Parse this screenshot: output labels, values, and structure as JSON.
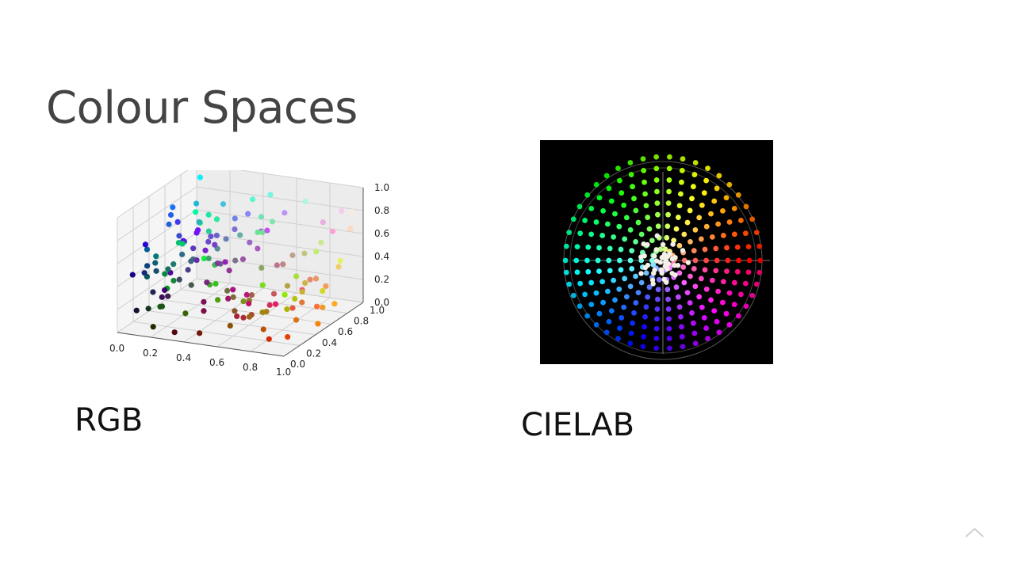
{
  "slide": {
    "title": "Colour Spaces"
  },
  "figures": {
    "rgb": {
      "caption": "RGB",
      "tick_labels_x": [
        "0.0",
        "0.2",
        "0.4",
        "0.6",
        "0.8",
        "1.0"
      ],
      "tick_labels_y": [
        "0.0",
        "0.2",
        "0.4",
        "0.6",
        "0.8",
        "1.0"
      ],
      "tick_labels_z": [
        "0.0",
        "0.2",
        "0.4",
        "0.6",
        "0.8",
        "1.0"
      ]
    },
    "cielab": {
      "caption": "CIELAB"
    }
  },
  "controls": {
    "scroll_top_icon": "chevron-up-icon"
  }
}
